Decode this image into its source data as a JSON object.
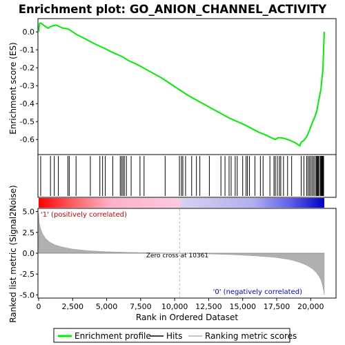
{
  "chart_data": {
    "type": "line",
    "title": "Enrichment plot: GO_ANION_CHANNEL_ACTIVITY",
    "xlabel": "Rank in Ordered Dataset",
    "ylabel_top": "Enrichment score (ES)",
    "ylabel_bottom": "Ranked list metric (Signal2Noise)",
    "xlim": [
      0,
      21000
    ],
    "top_ylim": [
      -0.68,
      0.07
    ],
    "bottom_ylim": [
      -5.3,
      5.3
    ],
    "x_ticks": [
      0,
      2500,
      5000,
      7500,
      10000,
      12500,
      15000,
      17500,
      20000
    ],
    "x_tick_labels": [
      "0",
      "2,500",
      "5,000",
      "7,500",
      "10,000",
      "12,500",
      "15,000",
      "17,500",
      "20,000"
    ],
    "top_y_ticks": [
      0.0,
      -0.1,
      -0.2,
      -0.3,
      -0.4,
      -0.5,
      -0.6
    ],
    "top_y_tick_labels": [
      "0.0",
      "-0.1",
      "-0.2",
      "-0.3",
      "-0.4",
      "-0.5",
      "-0.6"
    ],
    "bottom_y_ticks": [
      5.0,
      2.5,
      0.0,
      -2.5,
      -5.0
    ],
    "bottom_y_tick_labels": [
      "5.0",
      "2.5",
      "0.0",
      "-2.5",
      "-5.0"
    ],
    "series": [
      {
        "name": "Enrichment profile",
        "color": "#00ee00",
        "x": [
          0,
          60,
          150,
          400,
          700,
          900,
          1100,
          1300,
          1500,
          1800,
          2050,
          2200,
          2500,
          2800,
          3200,
          3700,
          4200,
          4800,
          5300,
          5900,
          6200,
          6600,
          7200,
          7800,
          8400,
          9000,
          9500,
          10000,
          10500,
          11000,
          11600,
          12200,
          12800,
          13400,
          14000,
          14600,
          15200,
          15700,
          16200,
          16700,
          17100,
          17400,
          17600,
          17800,
          18100,
          18500,
          18900,
          19200,
          19300,
          19500,
          19700,
          19850,
          20000,
          20150,
          20300,
          20450,
          20550,
          20650,
          20750,
          20830,
          20900,
          20950,
          21000
        ],
        "values": [
          0.0,
          0.045,
          0.05,
          0.035,
          0.02,
          0.03,
          0.035,
          0.038,
          0.03,
          0.02,
          0.018,
          0.015,
          0.0,
          -0.015,
          -0.03,
          -0.05,
          -0.07,
          -0.09,
          -0.11,
          -0.13,
          -0.14,
          -0.16,
          -0.18,
          -0.205,
          -0.23,
          -0.255,
          -0.28,
          -0.305,
          -0.33,
          -0.355,
          -0.38,
          -0.405,
          -0.43,
          -0.455,
          -0.48,
          -0.5,
          -0.52,
          -0.54,
          -0.56,
          -0.575,
          -0.59,
          -0.6,
          -0.59,
          -0.59,
          -0.595,
          -0.605,
          -0.62,
          -0.635,
          -0.615,
          -0.605,
          -0.585,
          -0.56,
          -0.53,
          -0.5,
          -0.475,
          -0.44,
          -0.4,
          -0.36,
          -0.32,
          -0.26,
          -0.21,
          -0.1,
          0.0
        ]
      },
      {
        "name": "Hits",
        "color": "#000000",
        "positions": [
          150,
          870,
          1150,
          1450,
          2150,
          2250,
          2750,
          3800,
          4500,
          4700,
          4900,
          5450,
          6000,
          6100,
          6200,
          6300,
          6450,
          6800,
          7450,
          7750,
          9300,
          10350,
          10500,
          10600,
          10800,
          11250,
          11600,
          11850,
          12550,
          13400,
          13700,
          14000,
          14150,
          14450,
          14600,
          15000,
          15250,
          15350,
          15500,
          15900,
          16300,
          16500,
          17000,
          17300,
          17400,
          17550,
          17700,
          17800,
          18000,
          18300,
          18600,
          19300,
          19500,
          19700,
          19800,
          19900,
          20000,
          20100,
          20200,
          20300,
          20400,
          20450,
          20500,
          20550,
          20600,
          20700,
          20750,
          20800,
          20850,
          20900,
          20950
        ]
      },
      {
        "name": "Ranking metric scores",
        "color": "#b0b0b0",
        "x": [
          0,
          50,
          150,
          300,
          500,
          800,
          1200,
          1800,
          2500,
          3500,
          5000,
          7000,
          9000,
          10361,
          12000,
          14000,
          16000,
          17500,
          18500,
          19200,
          19700,
          20100,
          20400,
          20600,
          20750,
          20850,
          20950,
          21000
        ],
        "values": [
          4.8,
          3.6,
          2.9,
          2.3,
          1.8,
          1.35,
          1.0,
          0.72,
          0.5,
          0.32,
          0.18,
          0.09,
          0.03,
          0.0,
          -0.06,
          -0.16,
          -0.32,
          -0.52,
          -0.78,
          -1.1,
          -1.45,
          -1.85,
          -2.3,
          -2.75,
          -3.2,
          -3.7,
          -4.5,
          -5.0
        ]
      }
    ],
    "annotations": {
      "positive_label": "'1' (positively correlated)",
      "negative_label": "'0' (negatively correlated)",
      "zero_cross_label": "Zero cross at 10361",
      "zero_cross_rank": 10361
    },
    "legend": {
      "placement": "bottom",
      "items": [
        "Enrichment profile",
        "Hits",
        "Ranking metric scores"
      ]
    },
    "grid": false
  }
}
